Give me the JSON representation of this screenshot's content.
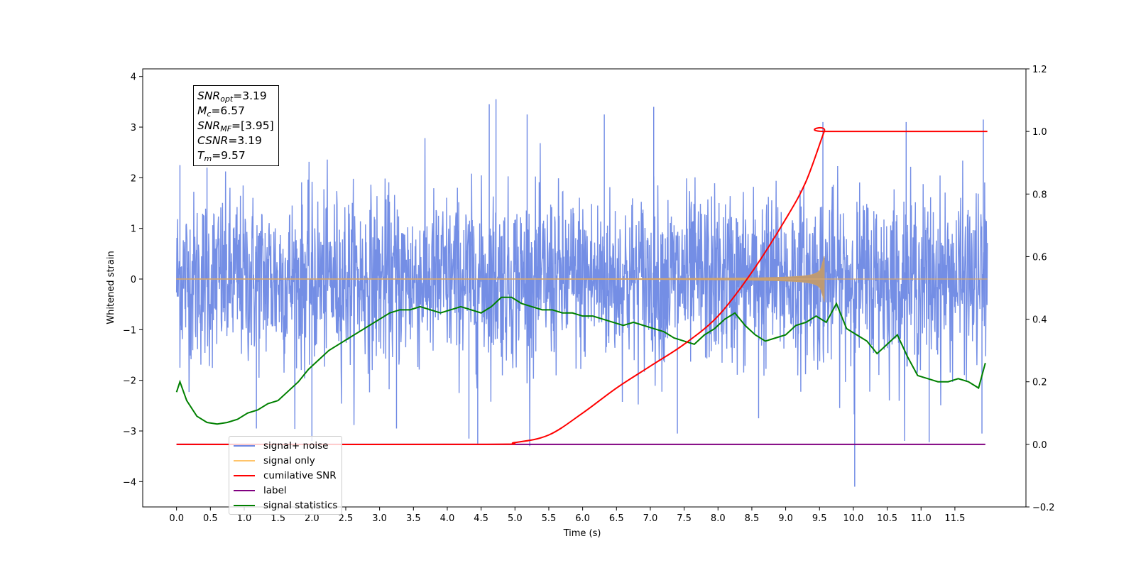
{
  "chart_data": {
    "type": "line",
    "xlabel": "Time (s)",
    "ylabel": "Whitened strain",
    "xlim": [
      -0.5,
      12.55
    ],
    "ylim": [
      -4.5,
      4.15
    ],
    "y2lim": [
      -0.2,
      1.2
    ],
    "xticks": [
      "0.0",
      "0.5",
      "1.0",
      "1.5",
      "2.0",
      "2.5",
      "3.0",
      "3.5",
      "4.0",
      "4.5",
      "5.0",
      "5.5",
      "6.0",
      "6.5",
      "7.0",
      "7.5",
      "8.0",
      "8.5",
      "9.0",
      "9.5",
      "10.0",
      "10.5",
      "11.0",
      "11.5"
    ],
    "yticks": [
      "−4",
      "−3",
      "−2",
      "−1",
      "0",
      "1",
      "2",
      "3",
      "4"
    ],
    "y2ticks": [
      "−0.2",
      "0.0",
      "0.2",
      "0.4",
      "0.6",
      "0.8",
      "1.0",
      "1.2"
    ],
    "grid": false,
    "legend_position": "lower-left",
    "annotation": {
      "rows": [
        {
          "sym": "SNR",
          "sub": "opt",
          "val": "=3.19"
        },
        {
          "sym": "M",
          "sub": "c",
          "val": "=6.57"
        },
        {
          "sym": "SNR",
          "sub": "MF",
          "val": "=[3.95]"
        },
        {
          "sym": "CSNR",
          "sub": "",
          "val": "=3.19"
        },
        {
          "sym": "T",
          "sub": "m",
          "val": "=9.57"
        }
      ]
    },
    "series": [
      {
        "name": "signal+ noise",
        "color": "#6d88e4",
        "axis": "left",
        "description_stats": {
          "envelope_low": -2.0,
          "envelope_high": 2.0,
          "min": -4.1,
          "max": 3.55
        }
      },
      {
        "name": "signal only",
        "color": "#ffc46a",
        "axis": "left",
        "chirp": {
          "start_time": 0.0,
          "merger_time": 9.57,
          "end_time": 11.98,
          "peak_amplitude": 0.45
        }
      },
      {
        "name": "cumilative SNR",
        "color": "#ff0000",
        "axis": "right",
        "x": [
          0.0,
          4.5,
          5.0,
          5.5,
          6.0,
          6.5,
          7.0,
          7.5,
          8.0,
          8.5,
          9.0,
          9.3,
          9.57,
          9.6,
          11.98
        ],
        "y": [
          0.0,
          0.0,
          0.006,
          0.03,
          0.1,
          0.18,
          0.25,
          0.32,
          0.41,
          0.55,
          0.72,
          0.84,
          1.0,
          1.0,
          1.0
        ]
      },
      {
        "name": "label",
        "color": "#800080",
        "axis": "right",
        "x": [
          0.0,
          11.95
        ],
        "y": [
          0.0,
          0.0
        ]
      },
      {
        "name": "signal statistics",
        "color": "#008000",
        "axis": "right",
        "x": [
          0.0,
          0.05,
          0.15,
          0.3,
          0.45,
          0.6,
          0.75,
          0.9,
          1.05,
          1.2,
          1.35,
          1.5,
          1.65,
          1.8,
          1.95,
          2.1,
          2.25,
          2.4,
          2.55,
          2.7,
          2.85,
          3.0,
          3.15,
          3.3,
          3.45,
          3.6,
          3.75,
          3.9,
          4.05,
          4.2,
          4.35,
          4.5,
          4.65,
          4.8,
          4.95,
          5.1,
          5.25,
          5.4,
          5.55,
          5.7,
          5.85,
          6.0,
          6.15,
          6.3,
          6.45,
          6.6,
          6.75,
          6.9,
          7.05,
          7.2,
          7.35,
          7.5,
          7.65,
          7.8,
          7.95,
          8.1,
          8.25,
          8.4,
          8.55,
          8.7,
          8.85,
          9.0,
          9.15,
          9.3,
          9.45,
          9.6,
          9.75,
          9.9,
          10.05,
          10.2,
          10.35,
          10.5,
          10.65,
          10.8,
          10.95,
          11.1,
          11.25,
          11.4,
          11.55,
          11.7,
          11.85,
          11.95
        ],
        "y": [
          0.167,
          0.2,
          0.14,
          0.09,
          0.07,
          0.065,
          0.07,
          0.08,
          0.1,
          0.11,
          0.13,
          0.14,
          0.17,
          0.2,
          0.24,
          0.27,
          0.3,
          0.32,
          0.34,
          0.36,
          0.38,
          0.4,
          0.42,
          0.43,
          0.43,
          0.44,
          0.43,
          0.42,
          0.43,
          0.44,
          0.43,
          0.42,
          0.44,
          0.47,
          0.47,
          0.45,
          0.44,
          0.43,
          0.43,
          0.42,
          0.42,
          0.41,
          0.41,
          0.4,
          0.39,
          0.38,
          0.39,
          0.38,
          0.37,
          0.36,
          0.34,
          0.33,
          0.32,
          0.35,
          0.37,
          0.4,
          0.42,
          0.38,
          0.35,
          0.33,
          0.34,
          0.35,
          0.38,
          0.39,
          0.41,
          0.39,
          0.45,
          0.37,
          0.35,
          0.33,
          0.29,
          0.32,
          0.35,
          0.28,
          0.22,
          0.21,
          0.2,
          0.2,
          0.21,
          0.2,
          0.18,
          0.26
        ]
      }
    ]
  }
}
